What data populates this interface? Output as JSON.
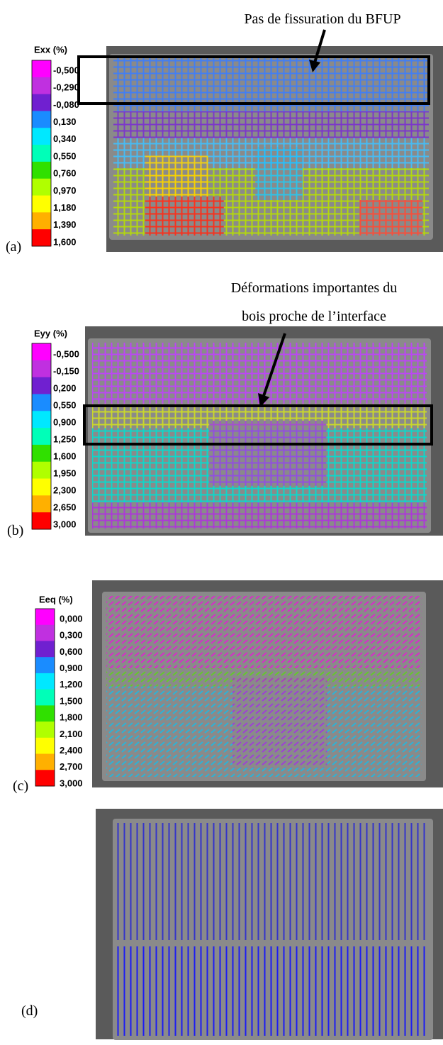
{
  "annotations": {
    "top": "Pas de fissuration du BFUP",
    "middle": [
      "Déformations importantes du",
      "bois proche de l’interface"
    ]
  },
  "panels": [
    {
      "label": "(a)",
      "legend": {
        "title": "Exx (%)",
        "values": [
          "-0,500",
          "-0,290",
          "-0,080",
          "0,130",
          "0,340",
          "0,550",
          "0,760",
          "0,970",
          "1,180",
          "1,390",
          "1,600"
        ]
      }
    },
    {
      "label": "(b)",
      "legend": {
        "title": "Eyy (%)",
        "values": [
          "-0,500",
          "-0,150",
          "0,200",
          "0,550",
          "0,900",
          "1,250",
          "1,600",
          "1,950",
          "2,300",
          "2,650",
          "3,000"
        ]
      }
    },
    {
      "label": "(c)",
      "legend": {
        "title": "Eeq (%)",
        "values": [
          "0,000",
          "0,300",
          "0,600",
          "0,900",
          "1,200",
          "1,500",
          "1,800",
          "2,100",
          "2,400",
          "2,700",
          "3,000"
        ]
      }
    },
    {
      "label": "(d)"
    }
  ]
}
